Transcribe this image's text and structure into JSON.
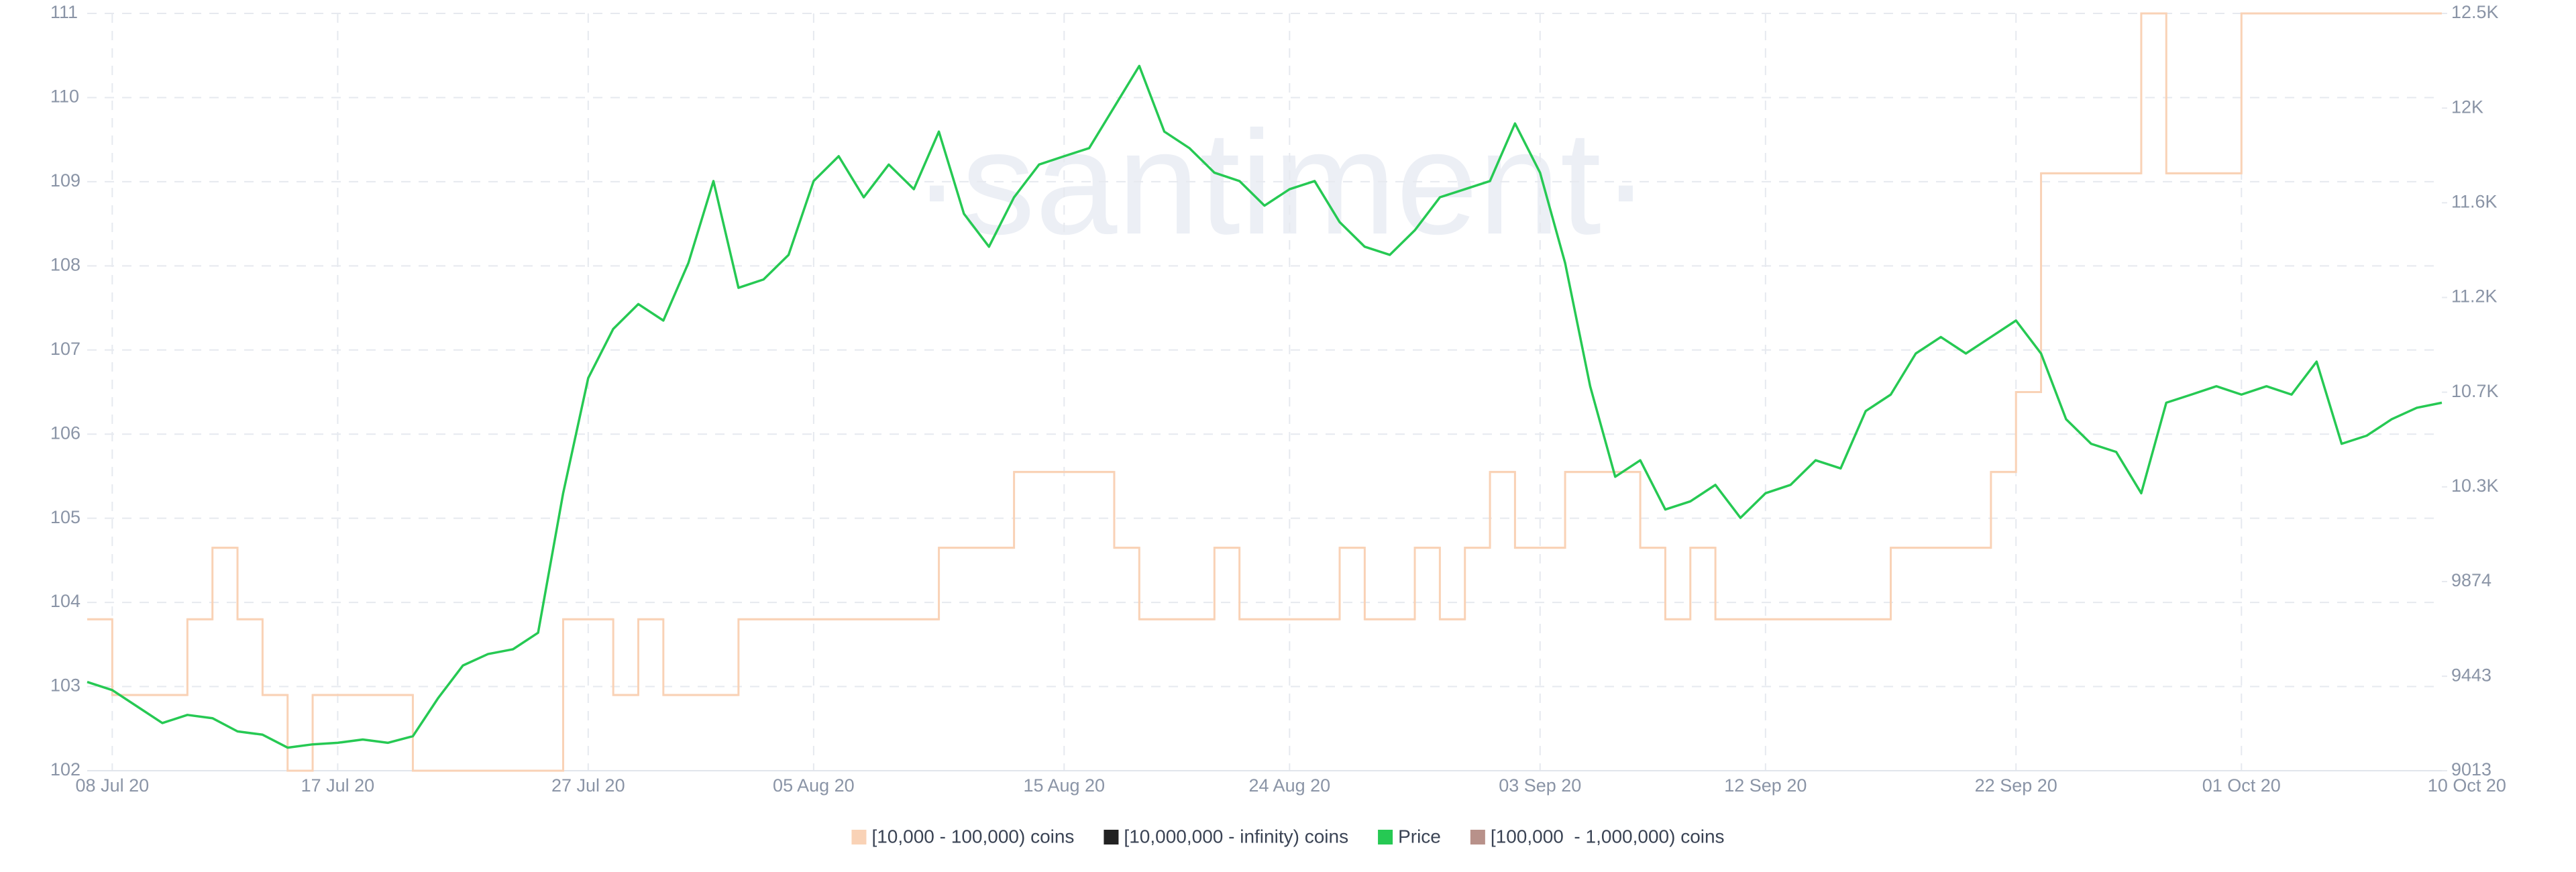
{
  "chart_data": {
    "type": "line",
    "watermark": "·santiment·",
    "x": [
      "2020-07-07",
      "2020-07-08",
      "2020-07-09",
      "2020-07-10",
      "2020-07-11",
      "2020-07-12",
      "2020-07-13",
      "2020-07-14",
      "2020-07-15",
      "2020-07-16",
      "2020-07-17",
      "2020-07-18",
      "2020-07-19",
      "2020-07-20",
      "2020-07-21",
      "2020-07-22",
      "2020-07-23",
      "2020-07-24",
      "2020-07-25",
      "2020-07-26",
      "2020-07-27",
      "2020-07-28",
      "2020-07-29",
      "2020-07-30",
      "2020-07-31",
      "2020-08-01",
      "2020-08-02",
      "2020-08-03",
      "2020-08-04",
      "2020-08-05",
      "2020-08-06",
      "2020-08-07",
      "2020-08-08",
      "2020-08-09",
      "2020-08-10",
      "2020-08-11",
      "2020-08-12",
      "2020-08-13",
      "2020-08-14",
      "2020-08-15",
      "2020-08-16",
      "2020-08-17",
      "2020-08-18",
      "2020-08-19",
      "2020-08-20",
      "2020-08-21",
      "2020-08-22",
      "2020-08-23",
      "2020-08-24",
      "2020-08-25",
      "2020-08-26",
      "2020-08-27",
      "2020-08-28",
      "2020-08-29",
      "2020-08-30",
      "2020-08-31",
      "2020-09-01",
      "2020-09-02",
      "2020-09-03",
      "2020-09-04",
      "2020-09-05",
      "2020-09-06",
      "2020-09-07",
      "2020-09-08",
      "2020-09-09",
      "2020-09-10",
      "2020-09-11",
      "2020-09-12",
      "2020-09-13",
      "2020-09-14",
      "2020-09-15",
      "2020-09-16",
      "2020-09-17",
      "2020-09-18",
      "2020-09-19",
      "2020-09-20",
      "2020-09-21",
      "2020-09-22",
      "2020-09-23",
      "2020-09-24",
      "2020-09-25",
      "2020-09-26",
      "2020-09-27",
      "2020-09-28",
      "2020-09-29",
      "2020-09-30",
      "2020-10-01",
      "2020-10-02",
      "2020-10-03",
      "2020-10-04",
      "2020-10-05",
      "2020-10-06",
      "2020-10-07",
      "2020-10-08",
      "2020-10-09"
    ],
    "xlim": [
      "2020-07-07",
      "2020-10-09"
    ],
    "xticks": [
      {
        "value": "2020-07-08",
        "label": "08 Jul 20"
      },
      {
        "value": "2020-07-17",
        "label": "17 Jul 20"
      },
      {
        "value": "2020-07-27",
        "label": "27 Jul 20"
      },
      {
        "value": "2020-08-05",
        "label": "05 Aug 20"
      },
      {
        "value": "2020-08-15",
        "label": "15 Aug 20"
      },
      {
        "value": "2020-08-24",
        "label": "24 Aug 20"
      },
      {
        "value": "2020-09-03",
        "label": "03 Sep 20"
      },
      {
        "value": "2020-09-12",
        "label": "12 Sep 20"
      },
      {
        "value": "2020-09-22",
        "label": "22 Sep 20"
      },
      {
        "value": "2020-10-01",
        "label": "01 Oct 20"
      },
      {
        "value": "2020-10-10",
        "label": "10 Oct 20"
      }
    ],
    "ylim": [
      102,
      111
    ],
    "yticks": [
      102,
      103,
      104,
      105,
      106,
      107,
      108,
      109,
      110,
      111
    ],
    "y2lim": [
      9013,
      12460
    ],
    "y2ticks": [
      9013,
      9443,
      9874,
      {
        "value": 10305,
        "label": "10.3K"
      },
      {
        "value": 10736,
        "label": "10.7K"
      },
      {
        "value": 11167,
        "label": "11.2K"
      },
      {
        "value": 11598,
        "label": "11.6K"
      },
      {
        "value": 12029,
        "label": "12K"
      },
      {
        "value": 12460,
        "label": "12.5K"
      }
    ],
    "grid": true,
    "series": [
      {
        "name": "[10,000 - 100,000) coins",
        "color": "#f9d2b6",
        "step": true,
        "values": [
          103.8,
          102.9,
          102.9,
          102.9,
          103.8,
          104.65,
          103.8,
          102.9,
          102,
          102.9,
          102.9,
          102.9,
          102.9,
          102,
          102,
          102,
          102,
          102,
          102,
          103.8,
          103.8,
          102.9,
          103.8,
          102.9,
          102.9,
          102.9,
          103.8,
          103.8,
          103.8,
          103.8,
          103.8,
          103.8,
          103.8,
          103.8,
          104.65,
          104.65,
          104.65,
          105.55,
          105.55,
          105.55,
          105.55,
          104.65,
          103.8,
          103.8,
          103.8,
          104.65,
          103.8,
          103.8,
          103.8,
          103.8,
          104.65,
          103.8,
          103.8,
          104.65,
          103.8,
          104.65,
          105.55,
          104.65,
          104.65,
          105.55,
          105.55,
          105.55,
          104.65,
          103.8,
          104.65,
          103.8,
          103.8,
          103.8,
          103.8,
          103.8,
          103.8,
          103.8,
          104.65,
          104.65,
          104.65,
          104.65,
          105.55,
          106.5,
          109.1,
          109.1,
          109.1,
          109.1,
          111,
          109.1,
          109.1,
          109.1,
          111,
          111,
          111,
          111,
          111,
          111,
          111,
          111,
          111
        ]
      },
      {
        "name": "[10,000,000 - infinity) coins",
        "color": "#222222"
      },
      {
        "name": "Price",
        "color": "#26c953",
        "axis": "y2",
        "values": [
          9417,
          9380,
          9305,
          9230,
          9267,
          9252,
          9192,
          9177,
          9118,
          9133,
          9140,
          9155,
          9140,
          9170,
          9342,
          9492,
          9544,
          9566,
          9641,
          10276,
          10800,
          11024,
          11137,
          11062,
          11324,
          11697,
          11211,
          11249,
          11361,
          11697,
          11810,
          11623,
          11772,
          11660,
          11922,
          11548,
          11398,
          11623,
          11772,
          11810,
          11847,
          12034,
          12221,
          11922,
          11847,
          11735,
          11697,
          11585,
          11660,
          11697,
          11510,
          11398,
          11361,
          11473,
          11623,
          11660,
          11697,
          11959,
          11735,
          11324,
          10763,
          10351,
          10426,
          10202,
          10239,
          10314,
          10164,
          10276,
          10314,
          10426,
          10389,
          10650,
          10725,
          10912,
          10987,
          10912,
          10987,
          11062,
          10912,
          10613,
          10501,
          10464,
          10276,
          10688,
          10725,
          10763,
          10725,
          10763,
          10725,
          10875,
          10501,
          10538,
          10613,
          10665,
          10688
        ]
      },
      {
        "name": "[100,000  - 1,000,000) coins",
        "color": "#b8918a"
      }
    ]
  }
}
